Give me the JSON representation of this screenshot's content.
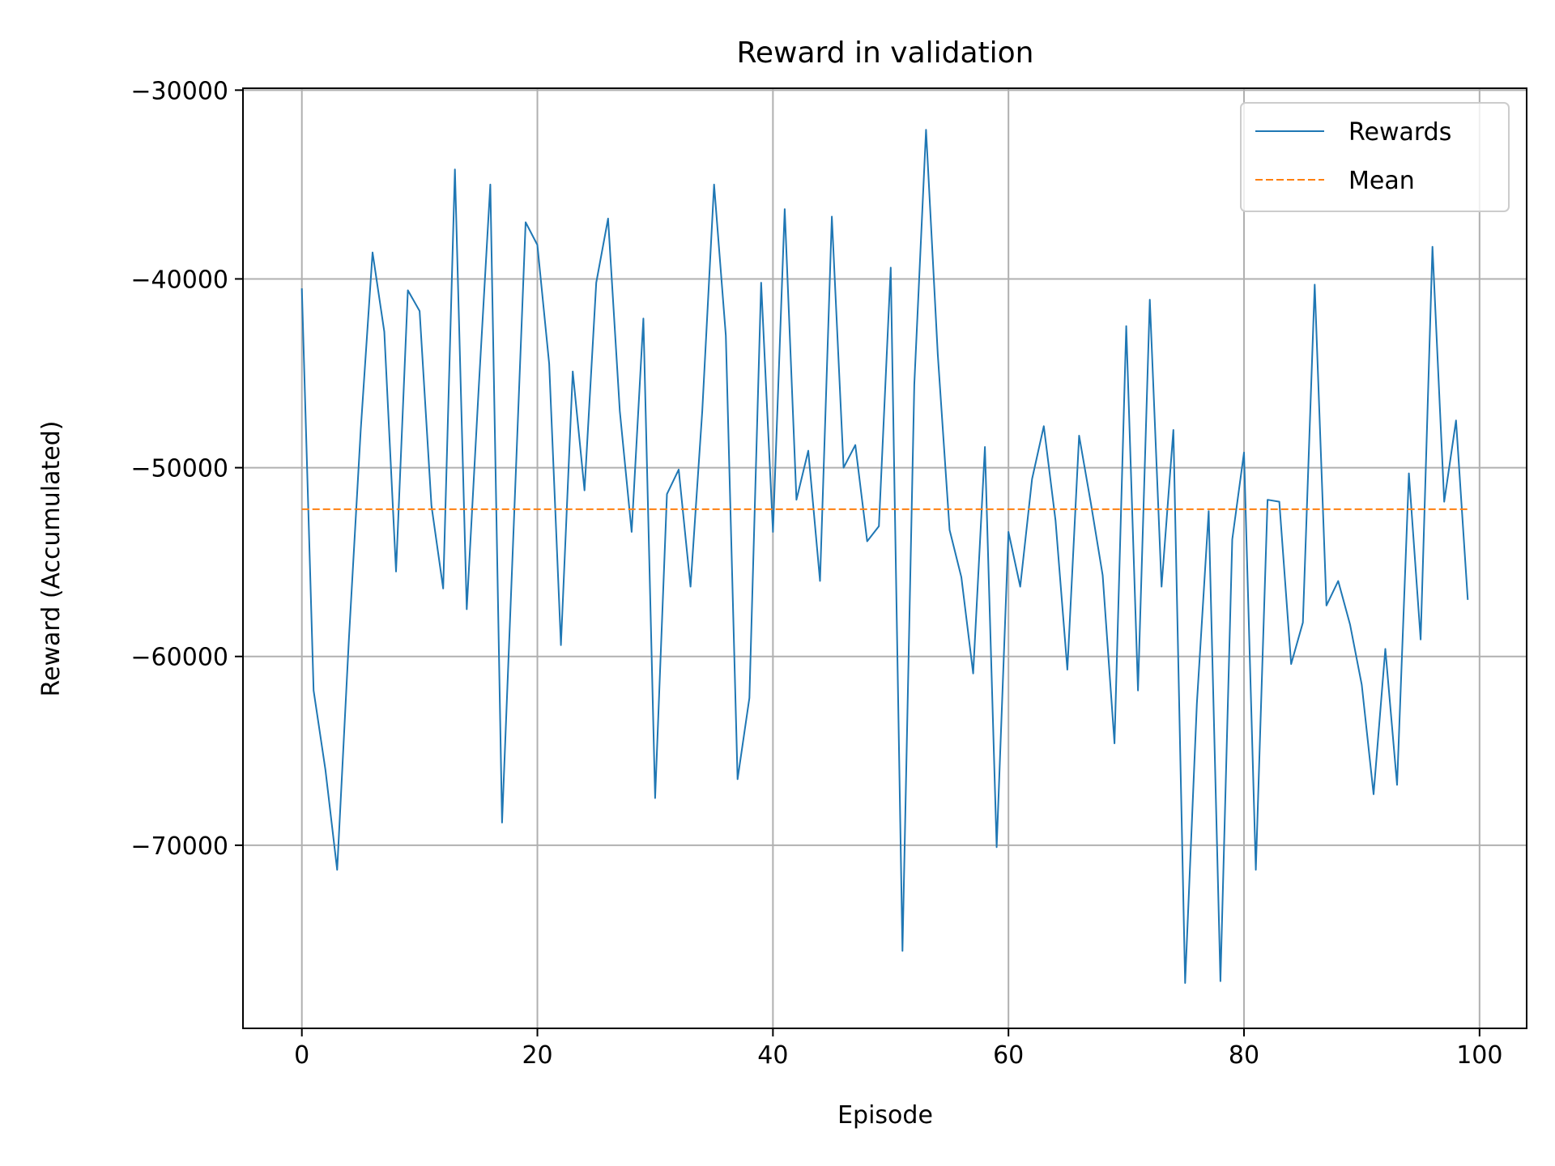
{
  "chart_data": {
    "type": "line",
    "title": "Reward in validation",
    "xlabel": "Episode",
    "ylabel": "Reward (Accumulated)",
    "xlim": [
      -5,
      104
    ],
    "ylim": [
      -79700,
      -29900
    ],
    "xticks": [
      0,
      20,
      40,
      60,
      80,
      100
    ],
    "yticks": [
      -70000,
      -60000,
      -50000,
      -40000,
      -30000
    ],
    "ytick_labels": [
      "−70000",
      "−60000",
      "−50000",
      "−40000",
      "−30000"
    ],
    "grid": true,
    "legend_position": "top-right",
    "series": [
      {
        "name": "Rewards",
        "color": "#1f77b4",
        "style": "solid",
        "x": [
          0,
          1,
          2,
          3,
          4,
          5,
          6,
          7,
          8,
          9,
          10,
          11,
          12,
          13,
          14,
          15,
          16,
          17,
          18,
          19,
          20,
          21,
          22,
          23,
          24,
          25,
          26,
          27,
          28,
          29,
          30,
          31,
          32,
          33,
          34,
          35,
          36,
          37,
          38,
          39,
          40,
          41,
          42,
          43,
          44,
          45,
          46,
          47,
          48,
          49,
          50,
          51,
          52,
          53,
          54,
          55,
          56,
          57,
          58,
          59,
          60,
          61,
          62,
          63,
          64,
          65,
          66,
          67,
          68,
          69,
          70,
          71,
          72,
          73,
          74,
          75,
          76,
          77,
          78,
          79,
          80,
          81,
          82,
          83,
          84,
          85,
          86,
          87,
          88,
          89,
          90,
          91,
          92,
          93,
          94,
          95,
          96,
          97,
          98,
          99
        ],
        "values": [
          -40500,
          -61800,
          -66000,
          -71300,
          -59000,
          -48000,
          -38600,
          -42800,
          -55500,
          -40600,
          -41700,
          -52000,
          -56400,
          -34200,
          -57500,
          -46000,
          -35000,
          -68800,
          -53000,
          -37000,
          -38200,
          -44500,
          -59400,
          -44900,
          -51200,
          -40200,
          -36800,
          -47000,
          -53400,
          -42100,
          -67500,
          -51400,
          -50100,
          -56300,
          -47000,
          -35000,
          -43000,
          -66500,
          -62200,
          -40200,
          -53400,
          -36300,
          -51700,
          -49100,
          -56000,
          -36700,
          -50000,
          -48800,
          -53900,
          -53100,
          -39400,
          -75600,
          -45600,
          -32100,
          -44000,
          -53300,
          -55800,
          -60900,
          -48900,
          -70100,
          -53400,
          -56300,
          -50600,
          -47800,
          -52800,
          -60700,
          -48300,
          -51900,
          -55700,
          -64600,
          -42500,
          -61800,
          -41100,
          -56300,
          -48000,
          -77300,
          -62500,
          -52300,
          -77200,
          -53800,
          -49200,
          -71300,
          -51700,
          -51800,
          -60400,
          -58200,
          -40300,
          -57300,
          -56000,
          -58300,
          -61500,
          -67300,
          -59600,
          -66800,
          -50300,
          -59100,
          -38300,
          -51800,
          -47500,
          -57000
        ]
      },
      {
        "name": "Mean",
        "color": "#ff7f0e",
        "style": "dashed",
        "x": [
          0,
          99
        ],
        "values": [
          -52200,
          -52200
        ]
      }
    ]
  }
}
